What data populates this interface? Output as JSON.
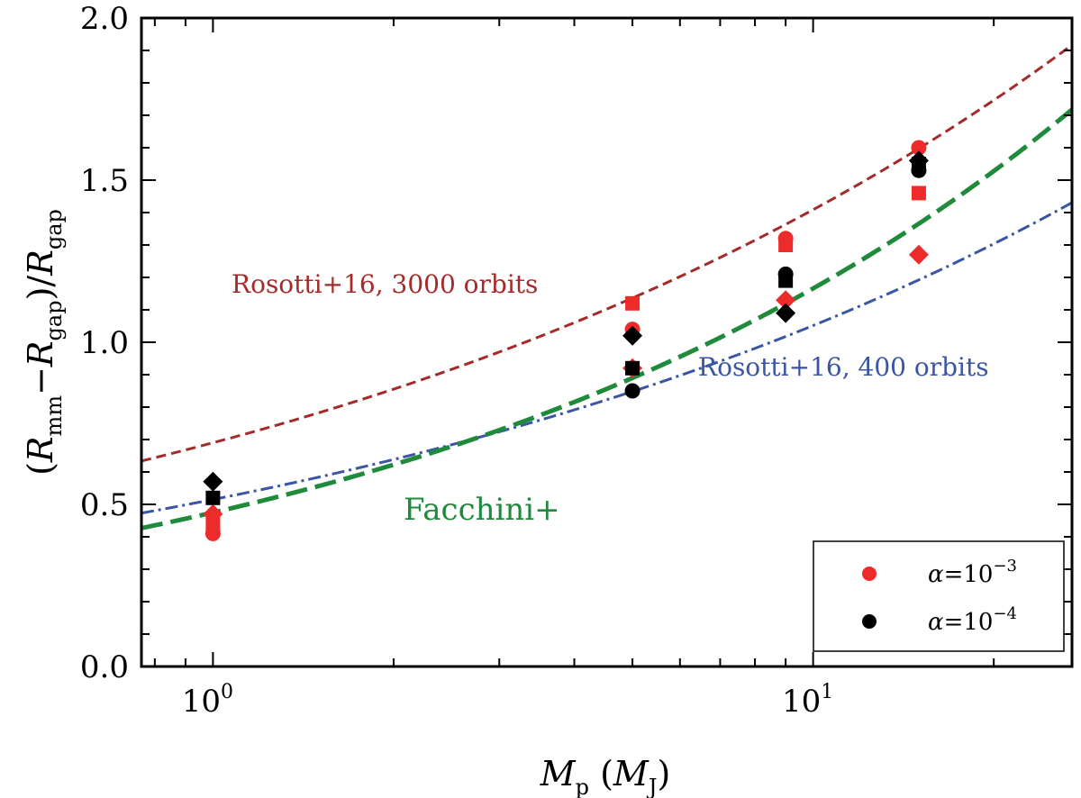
{
  "chart_data": {
    "type": "scatter",
    "xscale": "log",
    "xlim": [
      0.76,
      27
    ],
    "ylim": [
      0.0,
      2.0
    ],
    "grid": false,
    "xlabel": "M_p (M_J)",
    "ylabel": "(R_mm − R_gap)/R_gap",
    "yticks": [
      "0.0",
      "0.5",
      "1.0",
      "1.5",
      "2.0"
    ],
    "xticks": [
      {
        "value": 1,
        "base": "10",
        "exp": "0"
      },
      {
        "value": 10,
        "base": "10",
        "exp": "1"
      }
    ],
    "curves": [
      {
        "name": "Rosotti+16, 3000 orbits",
        "color": "#a52a2a",
        "style": "dashed",
        "A": 0.69,
        "b": 0.31
      },
      {
        "name": "Rosotti+16, 400 orbits",
        "color": "#3a55a4",
        "style": "dashdot",
        "A": 0.515,
        "b": 0.31
      },
      {
        "name": "Facchini+",
        "color": "#1f8a3b",
        "style": "dashed-bold",
        "A": 0.475,
        "b": 0.39
      }
    ],
    "series": [
      {
        "name": "α = 10^−3",
        "color": "#ee2b2b",
        "points": [
          {
            "x": 1.0,
            "y": 0.41,
            "marker": "circle"
          },
          {
            "x": 1.0,
            "y": 0.44,
            "marker": "square"
          },
          {
            "x": 1.0,
            "y": 0.47,
            "marker": "diamond"
          },
          {
            "x": 5.0,
            "y": 1.12,
            "marker": "square"
          },
          {
            "x": 5.0,
            "y": 1.04,
            "marker": "circle"
          },
          {
            "x": 5.0,
            "y": 0.92,
            "marker": "diamond"
          },
          {
            "x": 9.0,
            "y": 1.32,
            "marker": "circle"
          },
          {
            "x": 9.0,
            "y": 1.3,
            "marker": "square"
          },
          {
            "x": 9.0,
            "y": 1.13,
            "marker": "diamond"
          },
          {
            "x": 15.0,
            "y": 1.6,
            "marker": "circle"
          },
          {
            "x": 15.0,
            "y": 1.46,
            "marker": "square"
          },
          {
            "x": 15.0,
            "y": 1.27,
            "marker": "diamond"
          }
        ]
      },
      {
        "name": "α = 10^−4",
        "color": "#000000",
        "points": [
          {
            "x": 1.0,
            "y": 0.57,
            "marker": "diamond"
          },
          {
            "x": 1.0,
            "y": 0.52,
            "marker": "square"
          },
          {
            "x": 5.0,
            "y": 1.02,
            "marker": "diamond"
          },
          {
            "x": 5.0,
            "y": 0.92,
            "marker": "square"
          },
          {
            "x": 5.0,
            "y": 0.85,
            "marker": "circle"
          },
          {
            "x": 9.0,
            "y": 1.21,
            "marker": "circle"
          },
          {
            "x": 9.0,
            "y": 1.19,
            "marker": "square"
          },
          {
            "x": 9.0,
            "y": 1.09,
            "marker": "diamond"
          },
          {
            "x": 15.0,
            "y": 1.56,
            "marker": "diamond"
          },
          {
            "x": 15.0,
            "y": 1.53,
            "marker": "circle"
          },
          {
            "x": 15.0,
            "y": 1.55,
            "marker": "square"
          }
        ]
      }
    ],
    "legend": {
      "placement": "bottom-right",
      "entries": [
        {
          "label": "α = 10^−3",
          "color": "#ee2b2b"
        },
        {
          "label": "α = 10^−4",
          "color": "#000000"
        }
      ]
    }
  }
}
